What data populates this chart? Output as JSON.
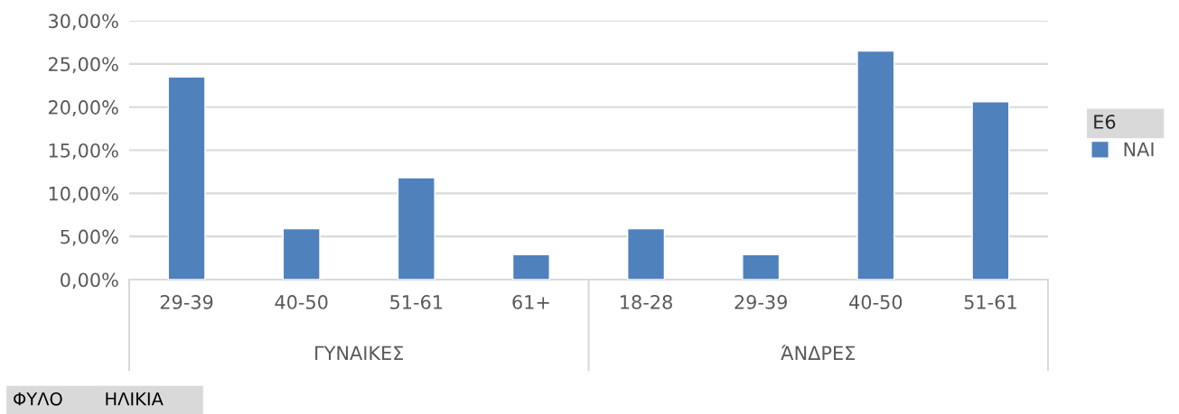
{
  "chart_data": {
    "type": "bar",
    "categories": [
      "29-39",
      "40-50",
      "51-61",
      "61+",
      "18-28",
      "29-39",
      "40-50",
      "51-61"
    ],
    "series": [
      {
        "name": "ΝΑΙ",
        "color": "#4f81bd",
        "values": [
          23.5,
          5.9,
          11.8,
          2.9,
          5.9,
          2.9,
          26.5,
          20.6
        ]
      }
    ],
    "legend_title": "E6",
    "legend": "right",
    "grid": "y",
    "ylim": [
      0,
      30
    ],
    "yticks": [
      {
        "value": 0,
        "label": "0,00%"
      },
      {
        "value": 5,
        "label": "5,00%"
      },
      {
        "value": 10,
        "label": "10,00%"
      },
      {
        "value": 15,
        "label": "15,00%"
      },
      {
        "value": 20,
        "label": "20,00%"
      },
      {
        "value": 25,
        "label": "25,00%"
      },
      {
        "value": 30,
        "label": "30,00%"
      }
    ],
    "annotations": [
      "ΓΥΝΑΙΚΕΣ",
      "ΆΝΔΡΕΣ",
      "ΦΥΛΟ",
      "ΗΛΙΚΙΑ"
    ]
  }
}
